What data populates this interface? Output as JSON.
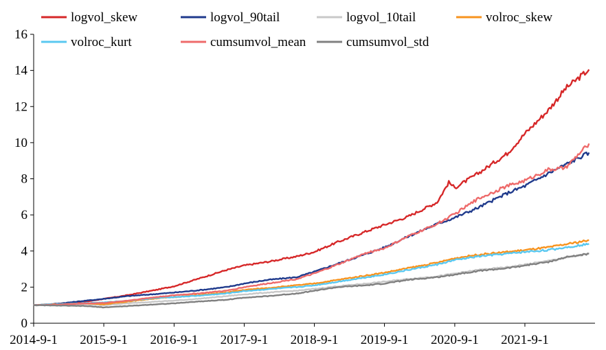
{
  "chart_data": {
    "type": "line",
    "title": "",
    "xlabel": "",
    "ylabel": "",
    "xlim": [
      "2014-09-01",
      "2022-09-01"
    ],
    "ylim": [
      0,
      16
    ],
    "y_ticks": [
      0,
      2,
      4,
      6,
      8,
      10,
      12,
      14,
      16
    ],
    "x_ticks": [
      "2014-9-1",
      "2015-9-1",
      "2016-9-1",
      "2017-9-1",
      "2018-9-1",
      "2019-9-1",
      "2020-9-1",
      "2021-9-1"
    ],
    "x_tick_dates": [
      "2014-09-01",
      "2015-09-01",
      "2016-09-01",
      "2017-09-01",
      "2018-09-01",
      "2019-09-01",
      "2020-09-01",
      "2021-09-01"
    ],
    "grid": false,
    "legend_position": "top",
    "series": [
      {
        "name": "logvol_skew",
        "color": "#d62728",
        "points": [
          [
            "2014-09-01",
            1.0
          ],
          [
            "2015-01-01",
            1.04
          ],
          [
            "2015-06-01",
            1.2
          ],
          [
            "2015-09-01",
            1.35
          ],
          [
            "2016-01-01",
            1.55
          ],
          [
            "2016-06-01",
            1.85
          ],
          [
            "2016-09-01",
            2.05
          ],
          [
            "2017-01-01",
            2.45
          ],
          [
            "2017-06-01",
            2.95
          ],
          [
            "2017-09-01",
            3.2
          ],
          [
            "2018-01-01",
            3.4
          ],
          [
            "2018-06-01",
            3.7
          ],
          [
            "2018-09-01",
            3.95
          ],
          [
            "2019-01-01",
            4.5
          ],
          [
            "2019-06-01",
            5.1
          ],
          [
            "2019-09-01",
            5.45
          ],
          [
            "2020-01-01",
            5.9
          ],
          [
            "2020-06-01",
            6.7
          ],
          [
            "2020-08-01",
            7.8
          ],
          [
            "2020-09-01",
            7.5
          ],
          [
            "2021-01-01",
            8.3
          ],
          [
            "2021-06-01",
            9.4
          ],
          [
            "2021-09-01",
            10.5
          ],
          [
            "2022-01-01",
            11.8
          ],
          [
            "2022-04-01",
            13.0
          ],
          [
            "2022-08-01",
            14.05
          ]
        ]
      },
      {
        "name": "logvol_90tail",
        "color": "#1f3a8c",
        "points": [
          [
            "2014-09-01",
            1.0
          ],
          [
            "2015-01-01",
            1.08
          ],
          [
            "2015-06-01",
            1.25
          ],
          [
            "2015-09-01",
            1.35
          ],
          [
            "2016-01-01",
            1.5
          ],
          [
            "2016-06-01",
            1.62
          ],
          [
            "2016-09-01",
            1.7
          ],
          [
            "2017-01-01",
            1.82
          ],
          [
            "2017-06-01",
            2.0
          ],
          [
            "2017-09-01",
            2.2
          ],
          [
            "2018-01-01",
            2.4
          ],
          [
            "2018-06-01",
            2.55
          ],
          [
            "2018-09-01",
            2.85
          ],
          [
            "2019-01-01",
            3.3
          ],
          [
            "2019-06-01",
            3.85
          ],
          [
            "2019-09-01",
            4.2
          ],
          [
            "2020-01-01",
            4.8
          ],
          [
            "2020-06-01",
            5.5
          ],
          [
            "2020-09-01",
            5.85
          ],
          [
            "2021-01-01",
            6.4
          ],
          [
            "2021-06-01",
            7.2
          ],
          [
            "2021-09-01",
            7.6
          ],
          [
            "2022-01-01",
            8.3
          ],
          [
            "2022-08-01",
            9.45
          ]
        ]
      },
      {
        "name": "logvol_10tail",
        "color": "#c8c8c8",
        "points": [
          [
            "2014-09-01",
            1.0
          ],
          [
            "2015-01-01",
            1.02
          ],
          [
            "2015-06-01",
            1.05
          ],
          [
            "2015-09-01",
            1.0
          ],
          [
            "2016-01-01",
            1.1
          ],
          [
            "2016-06-01",
            1.2
          ],
          [
            "2016-09-01",
            1.25
          ],
          [
            "2017-01-01",
            1.35
          ],
          [
            "2017-06-01",
            1.5
          ],
          [
            "2017-09-01",
            1.6
          ],
          [
            "2018-01-01",
            1.7
          ],
          [
            "2018-06-01",
            1.8
          ],
          [
            "2018-09-01",
            1.9
          ],
          [
            "2019-01-01",
            2.05
          ],
          [
            "2019-06-01",
            2.2
          ],
          [
            "2019-09-01",
            2.3
          ],
          [
            "2020-01-01",
            2.45
          ],
          [
            "2020-06-01",
            2.6
          ],
          [
            "2020-09-01",
            2.75
          ],
          [
            "2021-01-01",
            2.95
          ],
          [
            "2021-06-01",
            3.1
          ],
          [
            "2021-09-01",
            3.25
          ],
          [
            "2022-01-01",
            3.45
          ],
          [
            "2022-08-01",
            3.85
          ]
        ]
      },
      {
        "name": "volroc_skew",
        "color": "#f7931e",
        "points": [
          [
            "2014-09-01",
            1.0
          ],
          [
            "2015-01-01",
            1.06
          ],
          [
            "2015-06-01",
            1.1
          ],
          [
            "2015-09-01",
            1.05
          ],
          [
            "2016-01-01",
            1.2
          ],
          [
            "2016-06-01",
            1.38
          ],
          [
            "2016-09-01",
            1.45
          ],
          [
            "2017-01-01",
            1.55
          ],
          [
            "2017-06-01",
            1.7
          ],
          [
            "2017-09-01",
            1.85
          ],
          [
            "2018-01-01",
            1.95
          ],
          [
            "2018-06-01",
            2.1
          ],
          [
            "2018-09-01",
            2.2
          ],
          [
            "2019-01-01",
            2.4
          ],
          [
            "2019-06-01",
            2.65
          ],
          [
            "2019-09-01",
            2.8
          ],
          [
            "2020-01-01",
            3.05
          ],
          [
            "2020-06-01",
            3.35
          ],
          [
            "2020-09-01",
            3.6
          ],
          [
            "2021-01-01",
            3.8
          ],
          [
            "2021-06-01",
            3.95
          ],
          [
            "2021-09-01",
            4.05
          ],
          [
            "2022-01-01",
            4.2
          ],
          [
            "2022-08-01",
            4.6
          ]
        ]
      },
      {
        "name": "volroc_kurt",
        "color": "#5ac8f0",
        "points": [
          [
            "2014-09-01",
            1.0
          ],
          [
            "2015-01-01",
            1.05
          ],
          [
            "2015-06-01",
            1.12
          ],
          [
            "2015-09-01",
            1.15
          ],
          [
            "2016-01-01",
            1.25
          ],
          [
            "2016-06-01",
            1.4
          ],
          [
            "2016-09-01",
            1.45
          ],
          [
            "2017-01-01",
            1.52
          ],
          [
            "2017-06-01",
            1.65
          ],
          [
            "2017-09-01",
            1.78
          ],
          [
            "2018-01-01",
            1.88
          ],
          [
            "2018-06-01",
            2.0
          ],
          [
            "2018-09-01",
            2.1
          ],
          [
            "2019-01-01",
            2.3
          ],
          [
            "2019-06-01",
            2.55
          ],
          [
            "2019-09-01",
            2.7
          ],
          [
            "2020-01-01",
            2.95
          ],
          [
            "2020-06-01",
            3.25
          ],
          [
            "2020-09-01",
            3.5
          ],
          [
            "2021-01-01",
            3.7
          ],
          [
            "2021-06-01",
            3.85
          ],
          [
            "2021-09-01",
            3.95
          ],
          [
            "2022-01-01",
            4.05
          ],
          [
            "2022-08-01",
            4.4
          ]
        ]
      },
      {
        "name": "cumsumvol_mean",
        "color": "#ee6a6a",
        "points": [
          [
            "2014-09-01",
            1.0
          ],
          [
            "2015-01-01",
            1.03
          ],
          [
            "2015-06-01",
            1.1
          ],
          [
            "2015-09-01",
            1.12
          ],
          [
            "2016-01-01",
            1.25
          ],
          [
            "2016-06-01",
            1.45
          ],
          [
            "2016-09-01",
            1.55
          ],
          [
            "2017-01-01",
            1.65
          ],
          [
            "2017-06-01",
            1.8
          ],
          [
            "2017-09-01",
            2.0
          ],
          [
            "2018-01-01",
            2.2
          ],
          [
            "2018-06-01",
            2.45
          ],
          [
            "2018-09-01",
            2.75
          ],
          [
            "2019-01-01",
            3.25
          ],
          [
            "2019-06-01",
            3.9
          ],
          [
            "2019-09-01",
            4.15
          ],
          [
            "2020-01-01",
            4.8
          ],
          [
            "2020-06-01",
            5.5
          ],
          [
            "2020-09-01",
            6.05
          ],
          [
            "2021-01-01",
            6.9
          ],
          [
            "2021-06-01",
            7.6
          ],
          [
            "2021-09-01",
            7.9
          ],
          [
            "2022-01-01",
            8.5
          ],
          [
            "2022-04-01",
            8.6
          ],
          [
            "2022-08-01",
            9.95
          ]
        ]
      },
      {
        "name": "cumsumvol_std",
        "color": "#808080",
        "points": [
          [
            "2014-09-01",
            1.0
          ],
          [
            "2015-01-01",
            0.98
          ],
          [
            "2015-06-01",
            0.95
          ],
          [
            "2015-09-01",
            0.88
          ],
          [
            "2016-01-01",
            0.95
          ],
          [
            "2016-06-01",
            1.05
          ],
          [
            "2016-09-01",
            1.1
          ],
          [
            "2017-01-01",
            1.2
          ],
          [
            "2017-06-01",
            1.3
          ],
          [
            "2017-09-01",
            1.42
          ],
          [
            "2018-01-01",
            1.5
          ],
          [
            "2018-06-01",
            1.65
          ],
          [
            "2018-09-01",
            1.8
          ],
          [
            "2019-01-01",
            2.0
          ],
          [
            "2019-06-01",
            2.1
          ],
          [
            "2019-09-01",
            2.2
          ],
          [
            "2020-01-01",
            2.4
          ],
          [
            "2020-06-01",
            2.55
          ],
          [
            "2020-09-01",
            2.7
          ],
          [
            "2021-01-01",
            2.9
          ],
          [
            "2021-06-01",
            3.05
          ],
          [
            "2021-09-01",
            3.2
          ],
          [
            "2022-01-01",
            3.4
          ],
          [
            "2022-04-01",
            3.65
          ],
          [
            "2022-08-01",
            3.85
          ]
        ]
      }
    ]
  }
}
